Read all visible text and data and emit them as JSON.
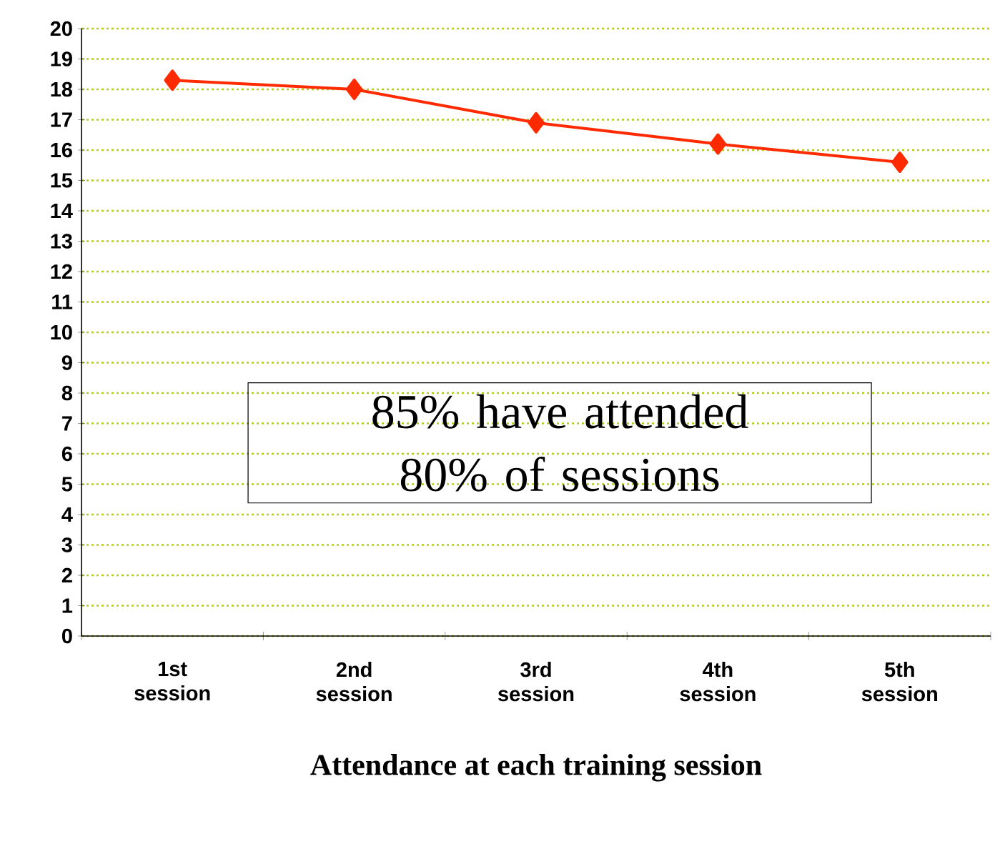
{
  "chart_data": {
    "type": "line",
    "categories": [
      "1st session",
      "2nd session",
      "3rd session",
      "4th session",
      "5th session"
    ],
    "values": [
      18.3,
      18.0,
      16.9,
      16.2,
      15.6
    ],
    "color": "#ff2a00",
    "ylim": [
      0,
      20
    ],
    "yticks": [
      0,
      1,
      2,
      3,
      4,
      5,
      6,
      7,
      8,
      9,
      10,
      11,
      12,
      13,
      14,
      15,
      16,
      17,
      18,
      19,
      20
    ],
    "grid": "y",
    "marker": "diamond",
    "xlabel": "Attendance at each training session",
    "annotations": [
      "85% have attended 80% of sessions"
    ]
  }
}
